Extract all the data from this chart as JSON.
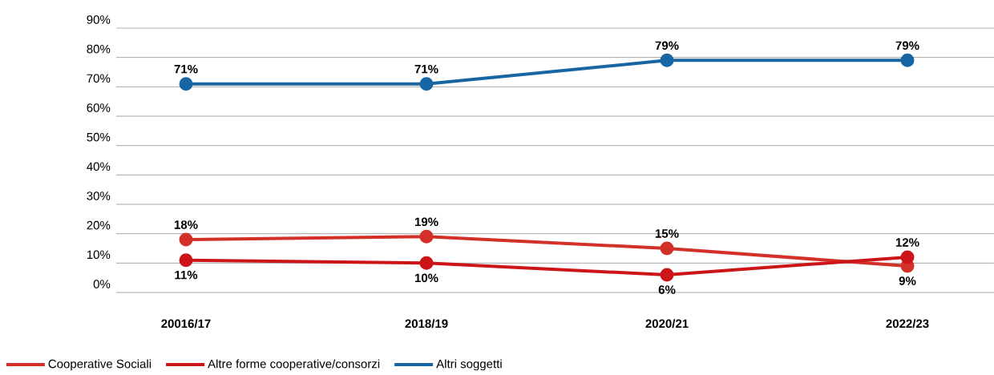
{
  "chart_data": {
    "type": "line",
    "categories": [
      "20016/17",
      "2018/19",
      "2020/21",
      "2022/23"
    ],
    "series": [
      {
        "name": "Cooperative Sociali",
        "color": "#d3302a",
        "values": [
          18,
          19,
          15,
          9
        ],
        "value_labels": [
          "18%",
          "19%",
          "15%",
          "9%"
        ]
      },
      {
        "name": "Altre forme cooperative/consorzi",
        "color": "#cc1518",
        "values": [
          11,
          10,
          6,
          12
        ],
        "value_labels": [
          "11%",
          "10%",
          "6%",
          "12%"
        ]
      },
      {
        "name": "Altri soggetti",
        "color": "#1766a3",
        "values": [
          71,
          71,
          79,
          79
        ],
        "value_labels": [
          "71%",
          "71%",
          "79%",
          "79%"
        ]
      }
    ],
    "ylim": [
      0,
      90
    ],
    "yticks": [
      {
        "value": 0,
        "label": "0%"
      },
      {
        "value": 10,
        "label": "10%"
      },
      {
        "value": 20,
        "label": "20%"
      },
      {
        "value": 30,
        "label": "30%"
      },
      {
        "value": 40,
        "label": "40%"
      },
      {
        "value": 50,
        "label": "50%"
      },
      {
        "value": 60,
        "label": "60%"
      },
      {
        "value": 70,
        "label": "70%"
      },
      {
        "value": 80,
        "label": "80%"
      },
      {
        "value": 90,
        "label": "90%"
      }
    ],
    "grid": "y",
    "legend": "bottom",
    "marker": "circle",
    "line_style": "solid"
  }
}
